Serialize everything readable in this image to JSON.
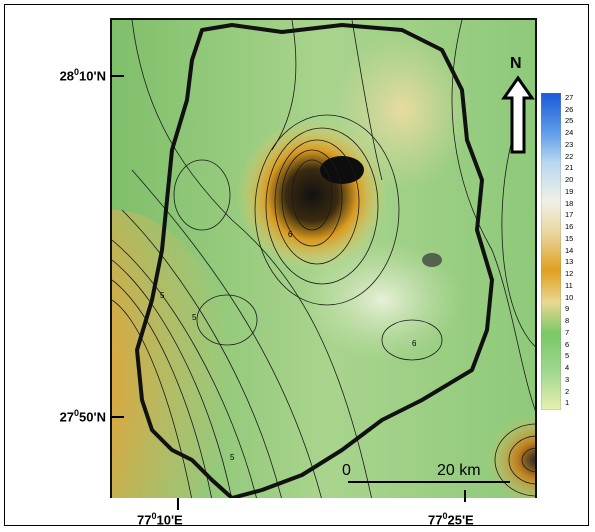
{
  "axes": {
    "lat_labels": [
      {
        "text": "28",
        "sup": "0",
        "rest": "10'N"
      },
      {
        "text": "27",
        "sup": "0",
        "rest": "50'N"
      }
    ],
    "lon_labels": [
      {
        "text": "77",
        "sup": "0",
        "rest": "10'E"
      },
      {
        "text": "77",
        "sup": "0",
        "rest": "25'E"
      }
    ]
  },
  "north_arrow": {
    "label": "N"
  },
  "scale_bar": {
    "start": "0",
    "end": "20 km"
  },
  "legend": {
    "values": [
      "27",
      "26",
      "25",
      "24",
      "23",
      "22",
      "21",
      "20",
      "19",
      "18",
      "17",
      "16",
      "15",
      "14",
      "13",
      "12",
      "11",
      "10",
      "9",
      "8",
      "7",
      "6",
      "5",
      "4",
      "3",
      "2",
      "1"
    ],
    "colors": {
      "high": "#1060e0",
      "mid": "#e8a020",
      "low": "#e8f0b0",
      "green": "#40b040"
    }
  },
  "contour_labels": [
    "5",
    "6",
    "5",
    "6",
    "5"
  ]
}
